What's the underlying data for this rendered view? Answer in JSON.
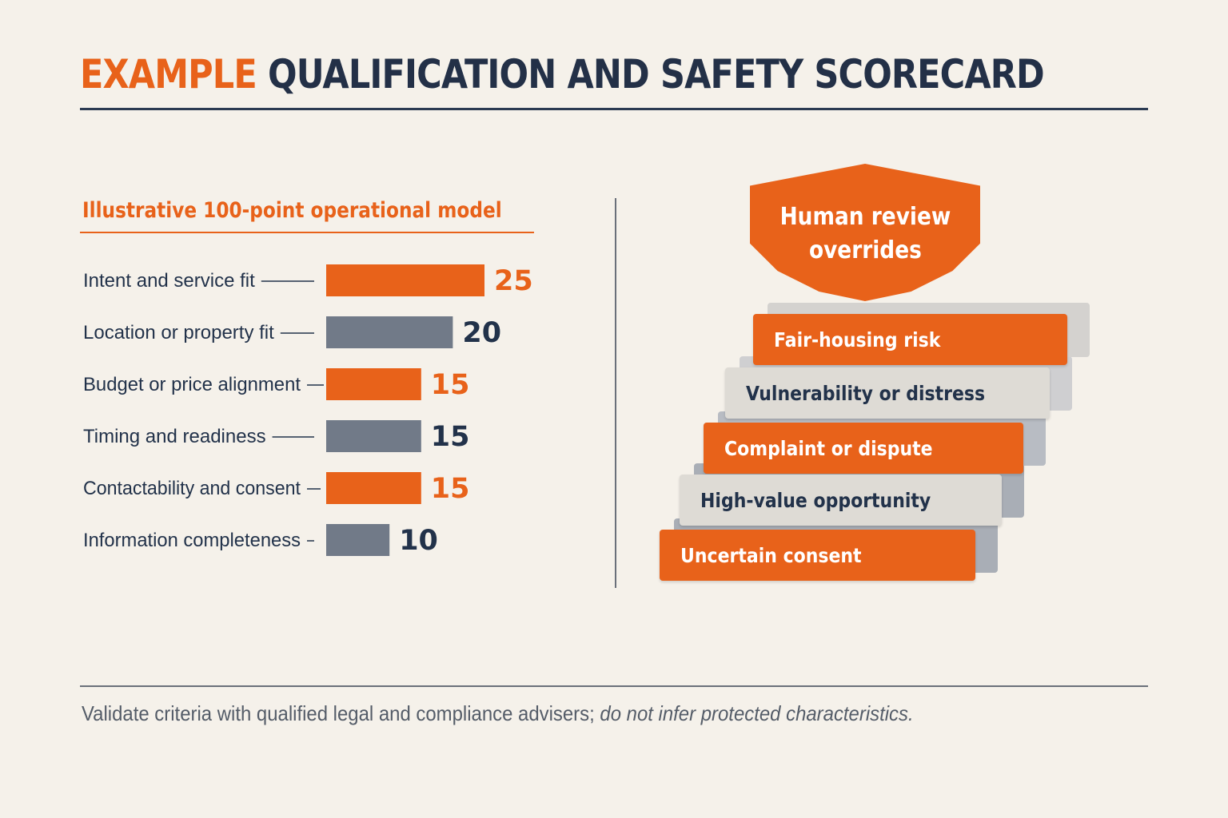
{
  "title": {
    "keyword": "EXAMPLE",
    "rest": "QUALIFICATION AND SAFETY SCORECARD"
  },
  "colors": {
    "accent": "#e8621a",
    "neutral": "#717a88",
    "ink": "#22324a",
    "background": "#f5f1ea"
  },
  "chart_data": {
    "type": "bar",
    "orientation": "horizontal",
    "title": "Illustrative 100-point operational model",
    "categories": [
      "Intent and service fit",
      "Location or property fit",
      "Budget or price alignment",
      "Timing and readiness",
      "Contactability and consent",
      "Information completeness"
    ],
    "values": [
      25,
      20,
      15,
      15,
      15,
      10
    ],
    "bar_colors": [
      "#e8621a",
      "#717a88",
      "#e8621a",
      "#717a88",
      "#e8621a",
      "#717a88"
    ],
    "value_colors": [
      "#e8621a",
      "#22324a",
      "#e8621a",
      "#22324a",
      "#e8621a",
      "#22324a"
    ],
    "xlim": [
      0,
      25
    ],
    "grid": false
  },
  "shield": {
    "text": "Human review\noverrides"
  },
  "overrides": [
    {
      "label": "Fair-housing risk",
      "style": "orange"
    },
    {
      "label": "Vulnerability or distress",
      "style": "gray"
    },
    {
      "label": "Complaint or dispute",
      "style": "orange"
    },
    {
      "label": "High-value opportunity",
      "style": "gray"
    },
    {
      "label": "Uncertain consent",
      "style": "orange"
    }
  ],
  "footer": {
    "regular": "Validate criteria with qualified legal and compliance advisers; ",
    "italic": "do not infer protected characteristics."
  }
}
